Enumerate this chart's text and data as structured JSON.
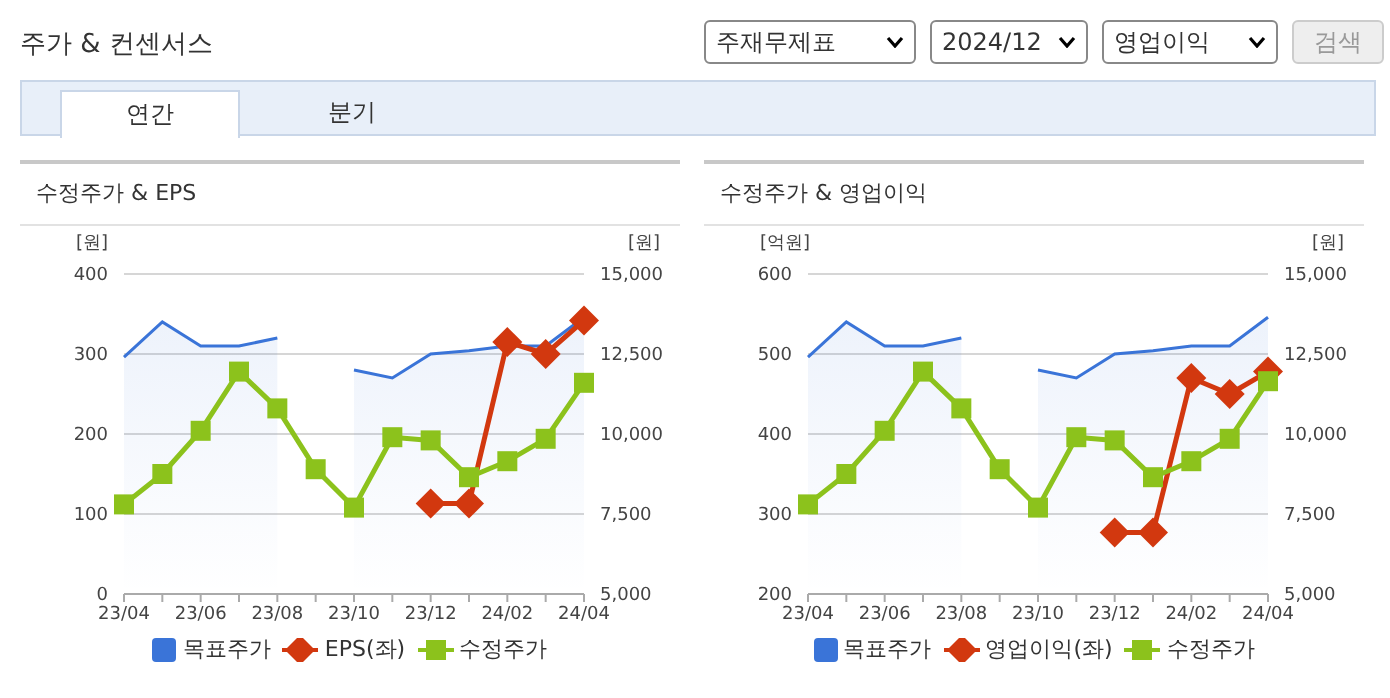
{
  "chart_data": [
    {
      "type": "line",
      "title": "수정주가 & EPS",
      "annotations": [
        "주가 & 컨센서스",
        "주재무제표",
        "2024/12",
        "영업이익",
        "검색",
        "연간",
        "분기"
      ],
      "categories": [
        "23/04",
        null,
        "23/06",
        null,
        "23/08",
        null,
        "23/10",
        null,
        "23/12",
        null,
        "24/02",
        null,
        "24/04"
      ],
      "ylabel": "[원]",
      "y2label": "[원]",
      "ylim": [
        0,
        400
      ],
      "yticks": [
        0,
        100,
        200,
        300,
        400
      ],
      "y2lim": [
        5000,
        15000
      ],
      "y2ticks": [
        {
          "value": 5000,
          "label": "5,000"
        },
        {
          "value": 7500,
          "label": "7,500"
        },
        {
          "value": 10000,
          "label": "10,000"
        },
        {
          "value": 12500,
          "label": "12,500"
        },
        {
          "value": 15000,
          "label": "15,000"
        }
      ],
      "grid": "y",
      "legend": "bottom",
      "series": [
        {
          "name": "목표주가",
          "type": "area",
          "axis": "y2",
          "color": "#3a74d8",
          "values": [
            12400,
            13500,
            12750,
            12750,
            13000,
            null,
            12000,
            11750,
            12500,
            12600,
            12750,
            12750,
            13650
          ]
        },
        {
          "name": "EPS(좌)",
          "marker": "diamond",
          "color": "#d2380f",
          "values": [
            null,
            null,
            null,
            null,
            null,
            null,
            null,
            null,
            113,
            113,
            315,
            300,
            342
          ]
        },
        {
          "name": "수정주가",
          "axis": "y2",
          "marker": "square",
          "color": "#8cc21c",
          "values": [
            7800,
            8750,
            10100,
            11950,
            10800,
            8900,
            7700,
            9900,
            9800,
            8650,
            9150,
            9850,
            11600
          ]
        }
      ]
    },
    {
      "type": "line",
      "title": "수정주가 & 영업이익",
      "categories": [
        "23/04",
        null,
        "23/06",
        null,
        "23/08",
        null,
        "23/10",
        null,
        "23/12",
        null,
        "24/02",
        null,
        "24/04"
      ],
      "ylabel": "[억원]",
      "y2label": "[원]",
      "ylim": [
        200,
        600
      ],
      "yticks": [
        200,
        300,
        400,
        500,
        600
      ],
      "y2lim": [
        5000,
        15000
      ],
      "y2ticks": [
        {
          "value": 5000,
          "label": "5,000"
        },
        {
          "value": 7500,
          "label": "7,500"
        },
        {
          "value": 10000,
          "label": "10,000"
        },
        {
          "value": 12500,
          "label": "12,500"
        },
        {
          "value": 15000,
          "label": "15,000"
        }
      ],
      "grid": "y",
      "legend": "bottom",
      "series": [
        {
          "name": "목표주가",
          "type": "area",
          "axis": "y2",
          "color": "#3a74d8",
          "values": [
            12400,
            13500,
            12750,
            12750,
            13000,
            null,
            12000,
            11750,
            12500,
            12600,
            12750,
            12750,
            13650
          ]
        },
        {
          "name": "영업이익(좌)",
          "marker": "diamond",
          "color": "#d2380f",
          "values": [
            null,
            null,
            null,
            null,
            null,
            null,
            null,
            null,
            277,
            277,
            470,
            450,
            478
          ]
        },
        {
          "name": "수정주가",
          "axis": "y2",
          "marker": "square",
          "color": "#8cc21c",
          "values": [
            7800,
            8750,
            10100,
            11950,
            10800,
            8900,
            7700,
            9900,
            9800,
            8650,
            9150,
            9850,
            11650
          ]
        }
      ]
    }
  ]
}
